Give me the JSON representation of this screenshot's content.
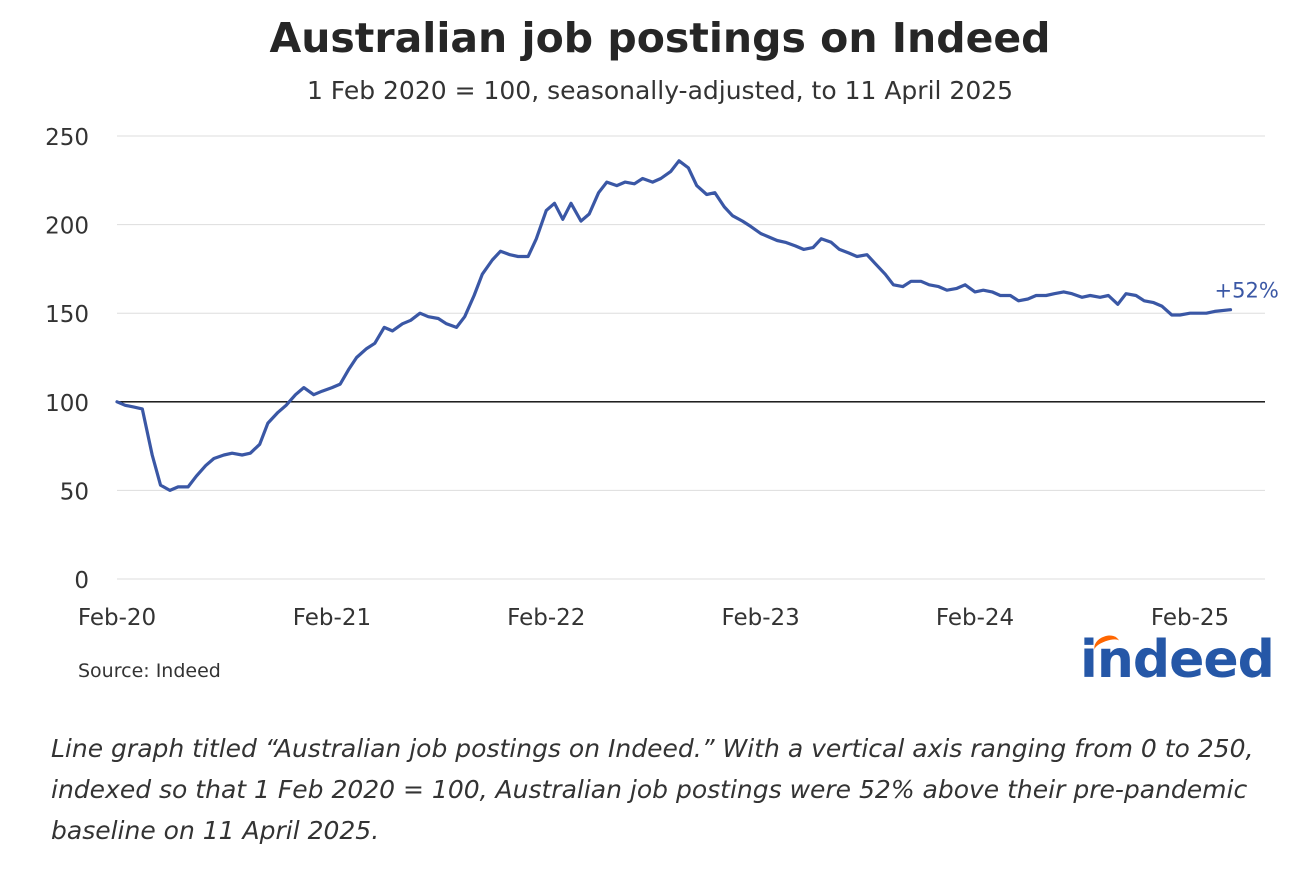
{
  "title": "Australian job postings on Indeed",
  "subtitle": "1 Feb 2020 = 100, seasonally-adjusted, to 11 April 2025",
  "source": "Source: Indeed",
  "logo_text": "indeed",
  "caption": "Line graph titled “Australian job postings on Indeed.” With a vertical axis ranging from 0 to 250, indexed so that 1 Feb 2020 = 100, Australian job postings were 52% above their pre-pandemic baseline on 11 April 2025.",
  "colors": {
    "line": "#3a57a5",
    "grid": "#dddddd",
    "baseline": "#000000",
    "logo": "#2557a7"
  },
  "chart_data": {
    "type": "line",
    "title": "Australian job postings on Indeed",
    "subtitle": "1 Feb 2020 = 100, seasonally-adjusted, to 11 April 2025",
    "xlabel": "",
    "ylabel": "",
    "ylim": [
      0,
      250
    ],
    "yticks": [
      0,
      50,
      100,
      150,
      200,
      250
    ],
    "xticks": [
      "Feb-20",
      "Feb-21",
      "Feb-22",
      "Feb-23",
      "Feb-24",
      "Feb-25"
    ],
    "reference_line": 100,
    "annotation": "+52%",
    "grid": true,
    "series": [
      {
        "values": [
          [
            "2020-02-01",
            100
          ],
          [
            "2020-02-15",
            98
          ],
          [
            "2020-03-01",
            97
          ],
          [
            "2020-03-15",
            96
          ],
          [
            "2020-04-01",
            70
          ],
          [
            "2020-04-15",
            53
          ],
          [
            "2020-05-01",
            50
          ],
          [
            "2020-05-15",
            52
          ],
          [
            "2020-06-01",
            52
          ],
          [
            "2020-06-15",
            58
          ],
          [
            "2020-07-01",
            64
          ],
          [
            "2020-07-15",
            68
          ],
          [
            "2020-08-01",
            70
          ],
          [
            "2020-08-15",
            71
          ],
          [
            "2020-09-01",
            70
          ],
          [
            "2020-09-15",
            71
          ],
          [
            "2020-10-01",
            76
          ],
          [
            "2020-10-15",
            88
          ],
          [
            "2020-11-01",
            94
          ],
          [
            "2020-11-15",
            98
          ],
          [
            "2020-12-01",
            104
          ],
          [
            "2020-12-15",
            108
          ],
          [
            "2021-01-01",
            104
          ],
          [
            "2021-01-15",
            106
          ],
          [
            "2021-02-01",
            108
          ],
          [
            "2021-02-15",
            110
          ],
          [
            "2021-03-01",
            118
          ],
          [
            "2021-03-15",
            125
          ],
          [
            "2021-04-01",
            130
          ],
          [
            "2021-04-15",
            133
          ],
          [
            "2021-05-01",
            142
          ],
          [
            "2021-05-15",
            140
          ],
          [
            "2021-06-01",
            144
          ],
          [
            "2021-06-15",
            146
          ],
          [
            "2021-07-01",
            150
          ],
          [
            "2021-07-15",
            148
          ],
          [
            "2021-08-01",
            147
          ],
          [
            "2021-08-15",
            144
          ],
          [
            "2021-09-01",
            142
          ],
          [
            "2021-09-15",
            148
          ],
          [
            "2021-10-01",
            160
          ],
          [
            "2021-10-15",
            172
          ],
          [
            "2021-11-01",
            180
          ],
          [
            "2021-11-15",
            185
          ],
          [
            "2021-12-01",
            183
          ],
          [
            "2021-12-15",
            182
          ],
          [
            "2022-01-01",
            182
          ],
          [
            "2022-01-15",
            192
          ],
          [
            "2022-02-01",
            208
          ],
          [
            "2022-02-15",
            212
          ],
          [
            "2022-03-01",
            203
          ],
          [
            "2022-03-15",
            212
          ],
          [
            "2022-04-01",
            202
          ],
          [
            "2022-04-15",
            206
          ],
          [
            "2022-05-01",
            218
          ],
          [
            "2022-05-15",
            224
          ],
          [
            "2022-06-01",
            222
          ],
          [
            "2022-06-15",
            224
          ],
          [
            "2022-07-01",
            223
          ],
          [
            "2022-07-15",
            226
          ],
          [
            "2022-08-01",
            224
          ],
          [
            "2022-08-15",
            226
          ],
          [
            "2022-09-01",
            230
          ],
          [
            "2022-09-15",
            236
          ],
          [
            "2022-10-01",
            232
          ],
          [
            "2022-10-15",
            222
          ],
          [
            "2022-11-01",
            217
          ],
          [
            "2022-11-15",
            218
          ],
          [
            "2022-12-01",
            210
          ],
          [
            "2022-12-15",
            205
          ],
          [
            "2023-01-01",
            202
          ],
          [
            "2023-01-15",
            199
          ],
          [
            "2023-02-01",
            195
          ],
          [
            "2023-02-15",
            193
          ],
          [
            "2023-03-01",
            191
          ],
          [
            "2023-03-15",
            190
          ],
          [
            "2023-04-01",
            188
          ],
          [
            "2023-04-15",
            186
          ],
          [
            "2023-05-01",
            187
          ],
          [
            "2023-05-15",
            192
          ],
          [
            "2023-06-01",
            190
          ],
          [
            "2023-06-15",
            186
          ],
          [
            "2023-07-01",
            184
          ],
          [
            "2023-07-15",
            182
          ],
          [
            "2023-08-01",
            183
          ],
          [
            "2023-08-15",
            178
          ],
          [
            "2023-09-01",
            172
          ],
          [
            "2023-09-15",
            166
          ],
          [
            "2023-10-01",
            165
          ],
          [
            "2023-10-15",
            168
          ],
          [
            "2023-11-01",
            168
          ],
          [
            "2023-11-15",
            166
          ],
          [
            "2023-12-01",
            165
          ],
          [
            "2023-12-15",
            163
          ],
          [
            "2024-01-01",
            164
          ],
          [
            "2024-01-15",
            166
          ],
          [
            "2024-02-01",
            162
          ],
          [
            "2024-02-15",
            163
          ],
          [
            "2024-03-01",
            162
          ],
          [
            "2024-03-15",
            160
          ],
          [
            "2024-04-01",
            160
          ],
          [
            "2024-04-15",
            157
          ],
          [
            "2024-05-01",
            158
          ],
          [
            "2024-05-15",
            160
          ],
          [
            "2024-06-01",
            160
          ],
          [
            "2024-06-15",
            161
          ],
          [
            "2024-07-01",
            162
          ],
          [
            "2024-07-15",
            161
          ],
          [
            "2024-08-01",
            159
          ],
          [
            "2024-08-15",
            160
          ],
          [
            "2024-09-01",
            159
          ],
          [
            "2024-09-15",
            160
          ],
          [
            "2024-10-01",
            155
          ],
          [
            "2024-10-15",
            161
          ],
          [
            "2024-11-01",
            160
          ],
          [
            "2024-11-15",
            157
          ],
          [
            "2024-12-01",
            156
          ],
          [
            "2024-12-15",
            154
          ],
          [
            "2025-01-01",
            149
          ],
          [
            "2025-01-15",
            149
          ],
          [
            "2025-02-01",
            150
          ],
          [
            "2025-02-15",
            150
          ],
          [
            "2025-03-01",
            150
          ],
          [
            "2025-03-15",
            151
          ],
          [
            "2025-04-11",
            152
          ]
        ]
      }
    ]
  }
}
